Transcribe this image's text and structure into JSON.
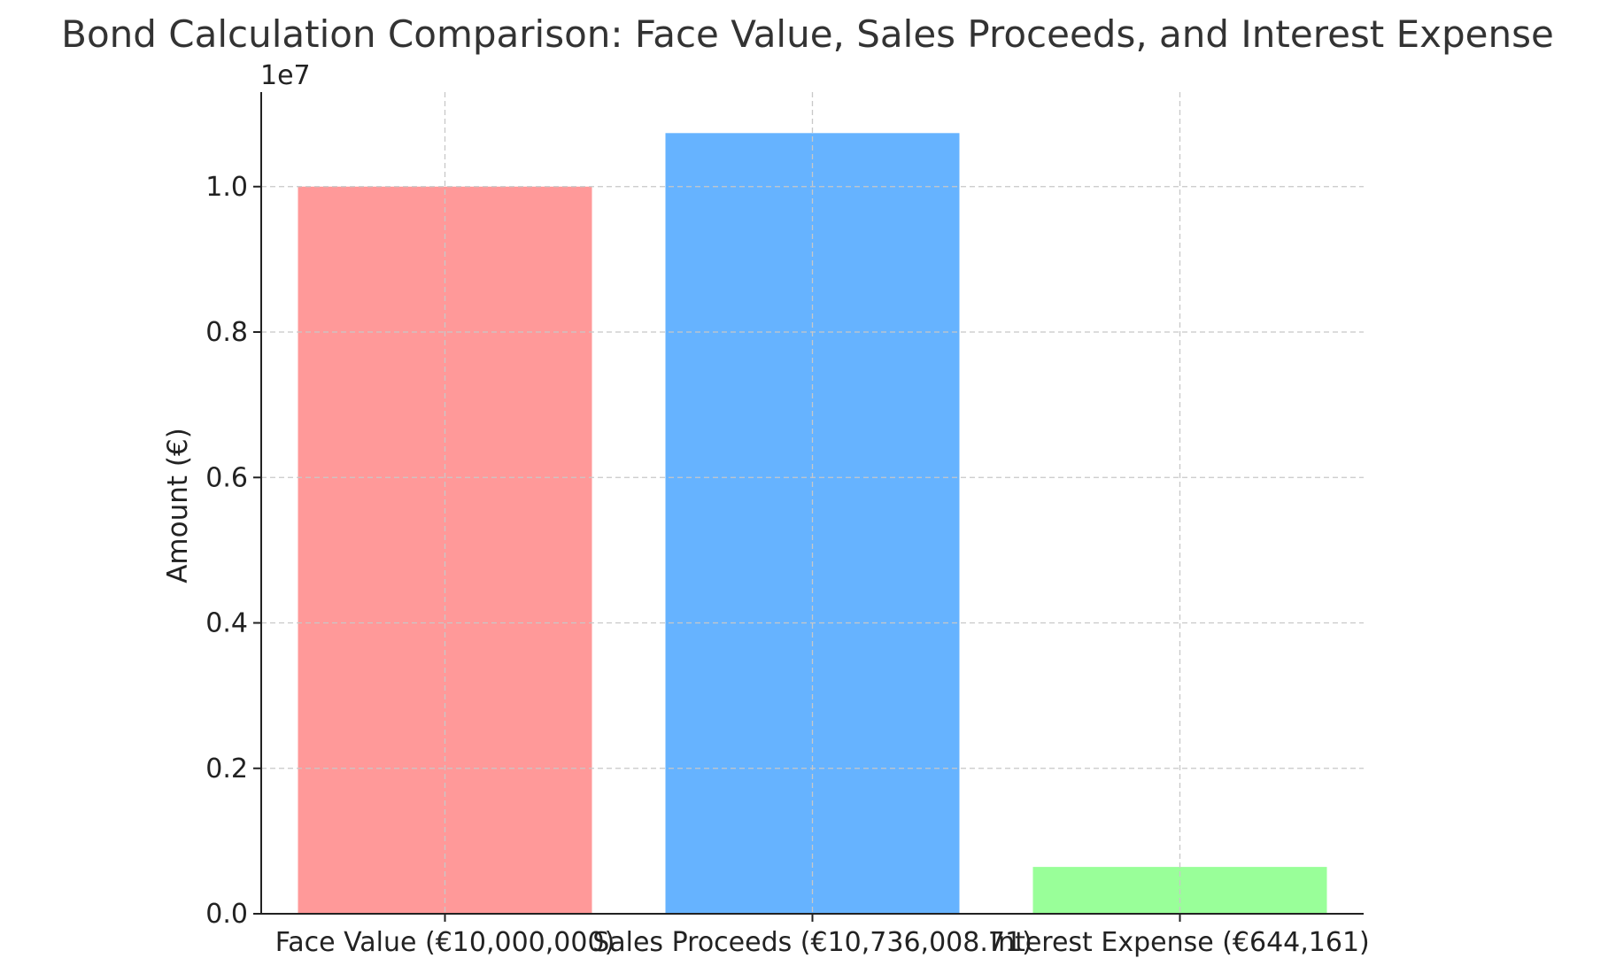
{
  "chart_data": {
    "type": "bar",
    "title": "Bond Calculation Comparison: Face Value, Sales Proceeds, and Interest Expense",
    "xlabel": "",
    "ylabel": "Amount (€)",
    "offset_label": "1e7",
    "categories": [
      "Face Value (€10,000,000)",
      "Sales Proceeds (€10,736,008.71)",
      "Interest Expense (€644,161)"
    ],
    "values": [
      10000000,
      10736008.71,
      644161
    ],
    "colors": [
      "#ff9999",
      "#66b3ff",
      "#99ff99"
    ],
    "ylim": [
      0,
      11300000
    ],
    "yticks": [
      0,
      2000000,
      4000000,
      6000000,
      8000000,
      10000000
    ],
    "ytick_labels": [
      "0.0",
      "0.2",
      "0.4",
      "0.6",
      "0.8",
      "1.0"
    ],
    "grid": true
  }
}
